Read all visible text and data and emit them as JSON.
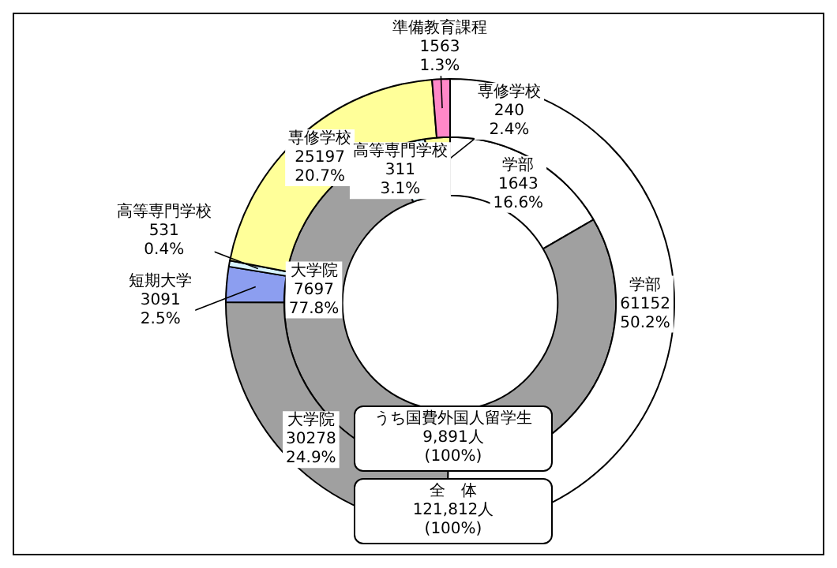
{
  "chart_data": {
    "type": "donut",
    "categories": [
      "学部",
      "大学院",
      "短期大学",
      "高等専門学校",
      "専修学校",
      "準備教育課程"
    ],
    "series": [
      {
        "name": "全　体\n121,812人\n(100%)",
        "colors": [
          "#ffffff",
          "#a0a0a0",
          "#8c9ef0",
          "#d8f4ff",
          "#ffff99",
          "#ff88c8"
        ],
        "values": [
          61152,
          30278,
          3091,
          531,
          25197,
          1563
        ],
        "value_labels": [
          "61152\n50.2%",
          "30278\n24.9%",
          "3091\n2.5%",
          "531\n0.4%",
          "25197\n20.7%",
          "1563\n1.3%"
        ]
      },
      {
        "name": "うち国費外国人留学生\n9,891人\n(100%)",
        "colors": [
          "#ffffff",
          "#a0a0a0",
          "#8c9ef0",
          "#d8f4ff",
          "#ffff99",
          "#ff88c8"
        ],
        "values": [
          1643,
          7697,
          null,
          311,
          240,
          null
        ],
        "value_labels": [
          "1643\n16.6%",
          "7697\n77.8%",
          null,
          "311\n3.1%",
          "240\n2.4%",
          null
        ]
      }
    ],
    "legend": false
  }
}
